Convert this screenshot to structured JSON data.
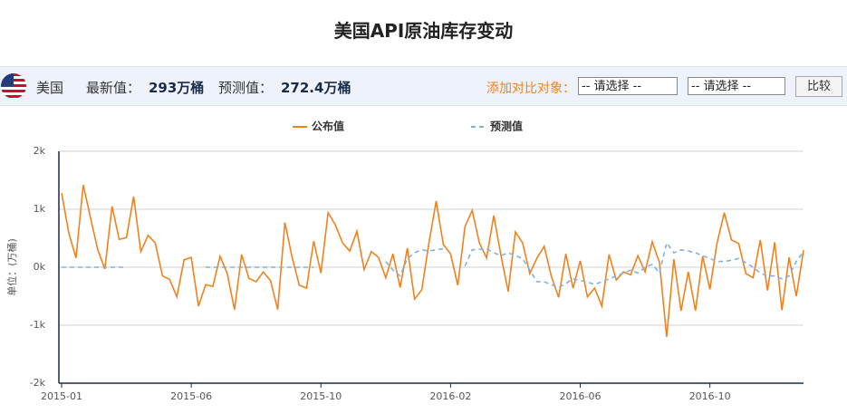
{
  "header": {
    "title": "美国API原油库存变动",
    "country": "美国",
    "latest_label": "最新值：",
    "latest_value": "293万桶",
    "forecast_label": "预测值：",
    "forecast_value": "272.4万桶",
    "compare_label": "添加对比对象：",
    "select1": "-- 请选择 --",
    "select2": "-- 请选择 --",
    "button": "比较"
  },
  "chart_data": {
    "type": "line",
    "y_label": "单位：(万桶)",
    "categories": [
      "2015-01",
      null,
      null,
      null,
      null,
      null,
      null,
      null,
      null,
      null,
      null,
      null,
      null,
      null,
      null,
      null,
      null,
      null,
      "2015-06",
      null,
      null,
      null,
      null,
      null,
      null,
      null,
      null,
      null,
      null,
      null,
      null,
      null,
      null,
      null,
      null,
      null,
      "2015-10",
      null,
      null,
      null,
      null,
      null,
      null,
      null,
      null,
      null,
      null,
      null,
      null,
      null,
      null,
      null,
      null,
      null,
      "2016-02",
      null,
      null,
      null,
      null,
      null,
      null,
      null,
      null,
      null,
      null,
      null,
      null,
      null,
      null,
      null,
      null,
      null,
      "2016-06",
      null,
      null,
      null,
      null,
      null,
      null,
      null,
      null,
      null,
      null,
      null,
      null,
      null,
      null,
      null,
      null,
      null,
      "2016-10",
      null,
      null,
      null,
      null,
      null,
      null,
      null,
      null,
      null,
      null,
      null,
      null,
      null
    ],
    "series": [
      {
        "name": "公布值",
        "color": "#f0821e",
        "dashed": false,
        "values": [
          1280,
          590,
          160,
          1420,
          860,
          310,
          -30,
          1050,
          480,
          510,
          1220,
          270,
          550,
          420,
          -150,
          -210,
          -510,
          130,
          170,
          -670,
          -300,
          -330,
          190,
          -110,
          -730,
          220,
          -190,
          -250,
          -80,
          -230,
          -730,
          770,
          170,
          -310,
          -360,
          450,
          -100,
          940,
          730,
          420,
          280,
          620,
          -40,
          270,
          170,
          -180,
          230,
          -350,
          330,
          -550,
          -390,
          420,
          1140,
          390,
          230,
          -310,
          700,
          980,
          420,
          160,
          890,
          200,
          -420,
          610,
          420,
          -110,
          160,
          360,
          -160,
          -520,
          230,
          -360,
          110,
          -510,
          -360,
          -670,
          220,
          -220,
          -80,
          -130,
          200,
          -80,
          440,
          80,
          -1200,
          140,
          -750,
          -80,
          -750,
          190,
          -380,
          420,
          940,
          470,
          410,
          -110,
          -180,
          470,
          -400,
          430,
          -740,
          170,
          -500,
          293
        ]
      },
      {
        "name": "预测值",
        "color": "#7fb2e0",
        "dashed": true,
        "values": [
          0,
          0,
          0,
          0,
          0,
          0,
          0,
          0,
          0,
          0,
          null,
          null,
          null,
          null,
          null,
          null,
          null,
          null,
          null,
          null,
          0,
          0,
          0,
          0,
          0,
          0,
          0,
          0,
          0,
          0,
          0,
          0,
          0,
          0,
          0,
          0,
          null,
          null,
          null,
          null,
          null,
          null,
          null,
          null,
          null,
          100,
          -50,
          -150,
          150,
          250,
          300,
          280,
          300,
          320,
          null,
          null,
          20,
          300,
          310,
          320,
          250,
          200,
          250,
          200,
          150,
          -50,
          -250,
          -250,
          -300,
          -350,
          -280,
          -200,
          -230,
          -250,
          -300,
          -250,
          -200,
          -150,
          -100,
          -50,
          -100,
          0,
          50,
          -100,
          420,
          250,
          300,
          280,
          250,
          200,
          150,
          100,
          100,
          120,
          150,
          80,
          0,
          -100,
          -150,
          -150,
          -200,
          -150,
          100,
          272.4
        ]
      }
    ],
    "ylim": [
      -2000,
      2000
    ],
    "yticks": [
      {
        "value": -2000,
        "label": "-2k"
      },
      {
        "value": -1000,
        "label": "-1k"
      },
      {
        "value": 0,
        "label": "0k"
      },
      {
        "value": 1000,
        "label": "1k"
      },
      {
        "value": 2000,
        "label": "2k"
      }
    ],
    "grid": true
  }
}
